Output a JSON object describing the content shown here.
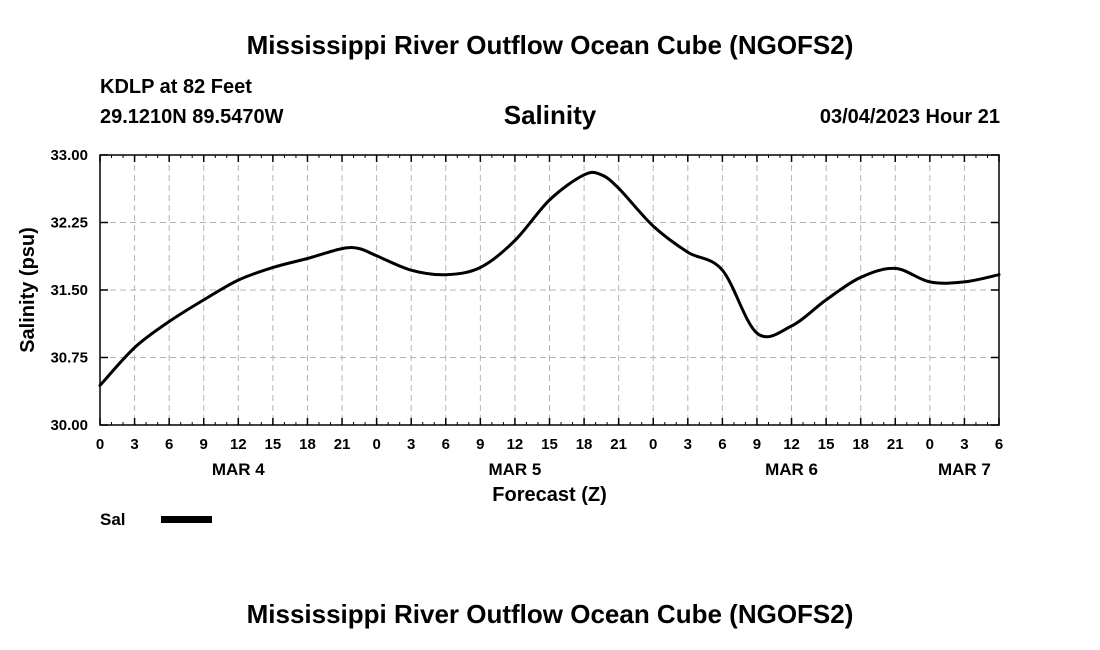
{
  "header": {
    "title": "Mississippi River Outflow Ocean Cube (NGOFS2)",
    "station": "KDLP at 82 Feet",
    "coords": "29.1210N  89.5470W",
    "subtitle": "Salinity",
    "datetime": "03/04/2023 Hour 21"
  },
  "footer": {
    "title": "Mississippi River Outflow Ocean Cube (NGOFS2)"
  },
  "legend": {
    "label": "Sal"
  },
  "colors": {
    "line": "#000000",
    "grid": "#b4b4b4",
    "axis": "#000000"
  },
  "chart_data": {
    "type": "line",
    "title": "Salinity",
    "xlabel": "Forecast (Z)",
    "ylabel": "Salinity (psu)",
    "xlim": [
      0,
      78
    ],
    "ylim": [
      30.0,
      33.0
    ],
    "x_unit": "forecast hours from MAR 4 00Z",
    "yticks": [
      30.0,
      30.75,
      31.5,
      32.25,
      33.0
    ],
    "ytick_labels": [
      "30.00",
      "30.75",
      "31.50",
      "32.25",
      "33.00"
    ],
    "xtick_labels": [
      "0",
      "3",
      "6",
      "9",
      "12",
      "15",
      "18",
      "21",
      "0",
      "3",
      "6",
      "9",
      "12",
      "15",
      "18",
      "21",
      "0",
      "3",
      "6",
      "9",
      "12",
      "15",
      "18",
      "21",
      "0",
      "3",
      "6"
    ],
    "day_labels": [
      {
        "label": "MAR 4",
        "hour": 12
      },
      {
        "label": "MAR 5",
        "hour": 36
      },
      {
        "label": "MAR 6",
        "hour": 60
      },
      {
        "label": "MAR 7",
        "hour": 75
      }
    ],
    "grid": true,
    "series": [
      {
        "name": "Sal",
        "x": [
          0,
          3,
          6,
          9,
          12,
          15,
          18,
          21,
          22.5,
          24,
          27,
          30,
          33,
          36,
          39,
          42,
          43.5,
          45,
          48,
          51,
          54,
          57,
          60,
          63,
          66,
          69,
          72,
          75,
          78
        ],
        "values": [
          30.44,
          30.86,
          31.15,
          31.39,
          31.61,
          31.75,
          31.85,
          31.96,
          31.96,
          31.88,
          31.72,
          31.67,
          31.75,
          32.05,
          32.5,
          32.78,
          32.78,
          32.63,
          32.21,
          31.92,
          31.72,
          31.02,
          31.1,
          31.39,
          31.64,
          31.74,
          31.59,
          31.59,
          31.67
        ]
      }
    ]
  }
}
